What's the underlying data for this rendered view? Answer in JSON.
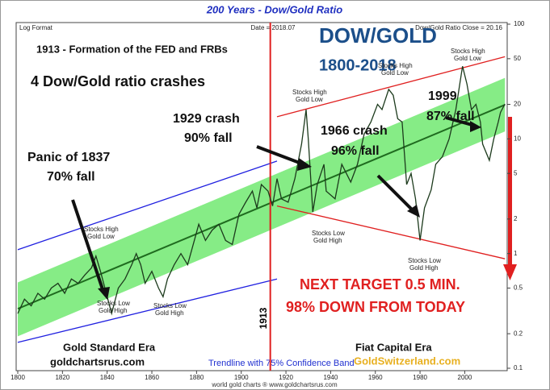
{
  "chart_data": {
    "type": "line",
    "title": "200 Years - Dow/Gold Ratio",
    "info": [
      "Log Format",
      "Date = 2018.07",
      "Dow/Gold Ratio Close = 20.16"
    ],
    "footer": "world gold charts ® www.goldchartsrus.com",
    "log_scale": true,
    "xlim": [
      1800,
      2019
    ],
    "xticks": [
      1800,
      1820,
      1840,
      1860,
      1880,
      1900,
      1920,
      1940,
      1960,
      1980,
      2000
    ],
    "ylim": [
      0.1,
      100
    ],
    "yticks": [
      0.1,
      0.2,
      0.5,
      1,
      2,
      5,
      10,
      20,
      50,
      100
    ],
    "grid": false,
    "series": [
      {
        "color": "#1c3a1c",
        "x": [
          1800,
          1803,
          1806,
          1809,
          1812,
          1815,
          1818,
          1821,
          1824,
          1827,
          1830,
          1833,
          1835,
          1837,
          1839,
          1842,
          1845,
          1848,
          1851,
          1853,
          1855,
          1857,
          1860,
          1863,
          1865,
          1867,
          1870,
          1873,
          1876,
          1879,
          1881,
          1884,
          1887,
          1890,
          1893,
          1896,
          1899,
          1902,
          1905,
          1907,
          1909,
          1912,
          1914,
          1916,
          1918,
          1921,
          1924,
          1927,
          1929,
          1930,
          1932,
          1934,
          1937,
          1938,
          1942,
          1945,
          1949,
          1952,
          1955,
          1958,
          1961,
          1963,
          1966,
          1968,
          1970,
          1972,
          1974,
          1976,
          1978,
          1980,
          1982,
          1985,
          1987,
          1990,
          1993,
          1996,
          1999,
          2001,
          2003,
          2005,
          2007,
          2008,
          2011,
          2013,
          2015,
          2016,
          2018
        ],
        "values": [
          0.3,
          0.4,
          0.35,
          0.45,
          0.4,
          0.5,
          0.55,
          0.45,
          0.6,
          0.55,
          0.65,
          0.75,
          0.95,
          0.7,
          0.5,
          0.3,
          0.5,
          0.6,
          0.8,
          1.0,
          0.8,
          0.55,
          0.7,
          0.5,
          0.42,
          0.6,
          0.8,
          1.0,
          0.8,
          1.3,
          1.8,
          1.3,
          1.6,
          1.8,
          1.3,
          1.2,
          2.2,
          2.8,
          3.5,
          2.5,
          4.0,
          3.5,
          2.6,
          4.5,
          3.0,
          2.8,
          4.5,
          9,
          18,
          10,
          2.3,
          4,
          6,
          3.5,
          3,
          6,
          4.2,
          6,
          11,
          14,
          20,
          18,
          27,
          24,
          15,
          14,
          4,
          5,
          3,
          1.3,
          2.5,
          3.6,
          6,
          7,
          10,
          18,
          43,
          30,
          18,
          20,
          14,
          9,
          6.5,
          10,
          14,
          17,
          20.16
        ]
      }
    ],
    "trendline": {
      "name": "Trendline with 75% Confidence Band",
      "color": "#1f6b1f",
      "band_color": "#86ec86",
      "x": [
        1800,
        2018
      ],
      "values": [
        0.33,
        19.8
      ],
      "band_upper": [
        0.56,
        34
      ],
      "band_lower": [
        0.19,
        11.6
      ]
    },
    "channels": [
      {
        "color": "#2020e0",
        "x": [
          1800,
          1916
        ],
        "values": [
          1.08,
          6.4
        ]
      },
      {
        "color": "#2020e0",
        "x": [
          1800,
          1916
        ],
        "values": [
          0.168,
          0.6
        ]
      },
      {
        "color": "#e02020",
        "x": [
          1916,
          2018
        ],
        "values": [
          15.6,
          52
        ]
      },
      {
        "color": "#e02020",
        "x": [
          1916,
          2018
        ],
        "values": [
          2.6,
          0.9
        ]
      }
    ],
    "vline_x": 1913,
    "annotations": [
      "DOW/GOLD",
      "1800-2018",
      "1913 - Formation of the FED and FRBs",
      "4 Dow/Gold ratio crashes",
      "1929 crash",
      "90% fall",
      "Panic of 1837",
      "70% fall",
      "1966 crash",
      "96% fall",
      "1999",
      "87% fall",
      "NEXT TARGET 0.5 MIN.",
      "98% DOWN FROM TODAY",
      "Gold Standard Era",
      "goldchartsrus.com",
      "Fiat Capital Era",
      "GoldSwitzerland.com",
      "Stocks High",
      "Gold Low",
      "Stocks High",
      "Gold Low",
      "Stocks High",
      "Gold Low",
      "Stocks High",
      "Gold Low",
      "Stocks Low",
      "Gold High",
      "Stocks Low",
      "Gold High",
      "Stocks Low",
      "Gold High",
      "Stocks Low",
      "Gold High"
    ]
  }
}
